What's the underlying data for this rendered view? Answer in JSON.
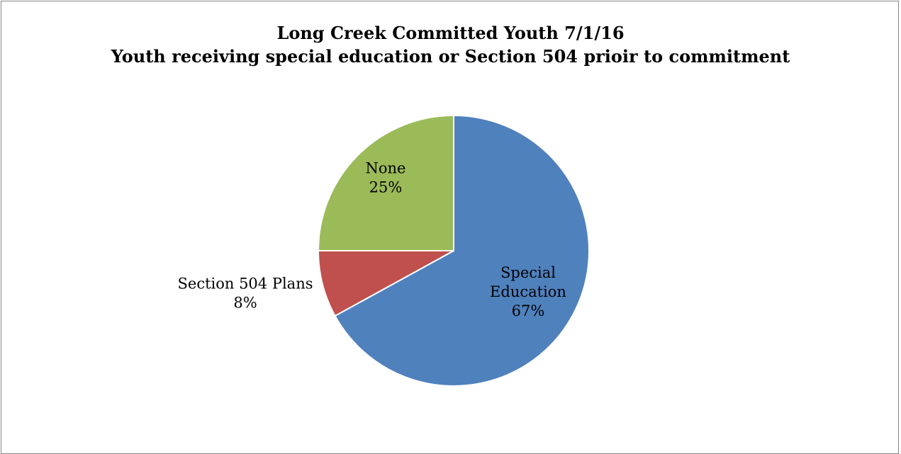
{
  "chart_data": {
    "type": "pie",
    "title": "Long Creek Committed Youth 7/1/16",
    "subtitle": "Youth receiving special education or Section 504 prioir to commitment",
    "slices": [
      {
        "label_lines": [
          "Special",
          "Education"
        ],
        "value": 67,
        "value_label": "67%",
        "color": "#4F81BD"
      },
      {
        "label_lines": [
          "Section 504 Plans"
        ],
        "value": 8,
        "value_label": "8%",
        "color": "#C0504D"
      },
      {
        "label_lines": [
          "None"
        ],
        "value": 25,
        "value_label": "25%",
        "color": "#9BBB59"
      }
    ],
    "start_angle_deg": 0,
    "direction": "clockwise",
    "legend": "none"
  }
}
